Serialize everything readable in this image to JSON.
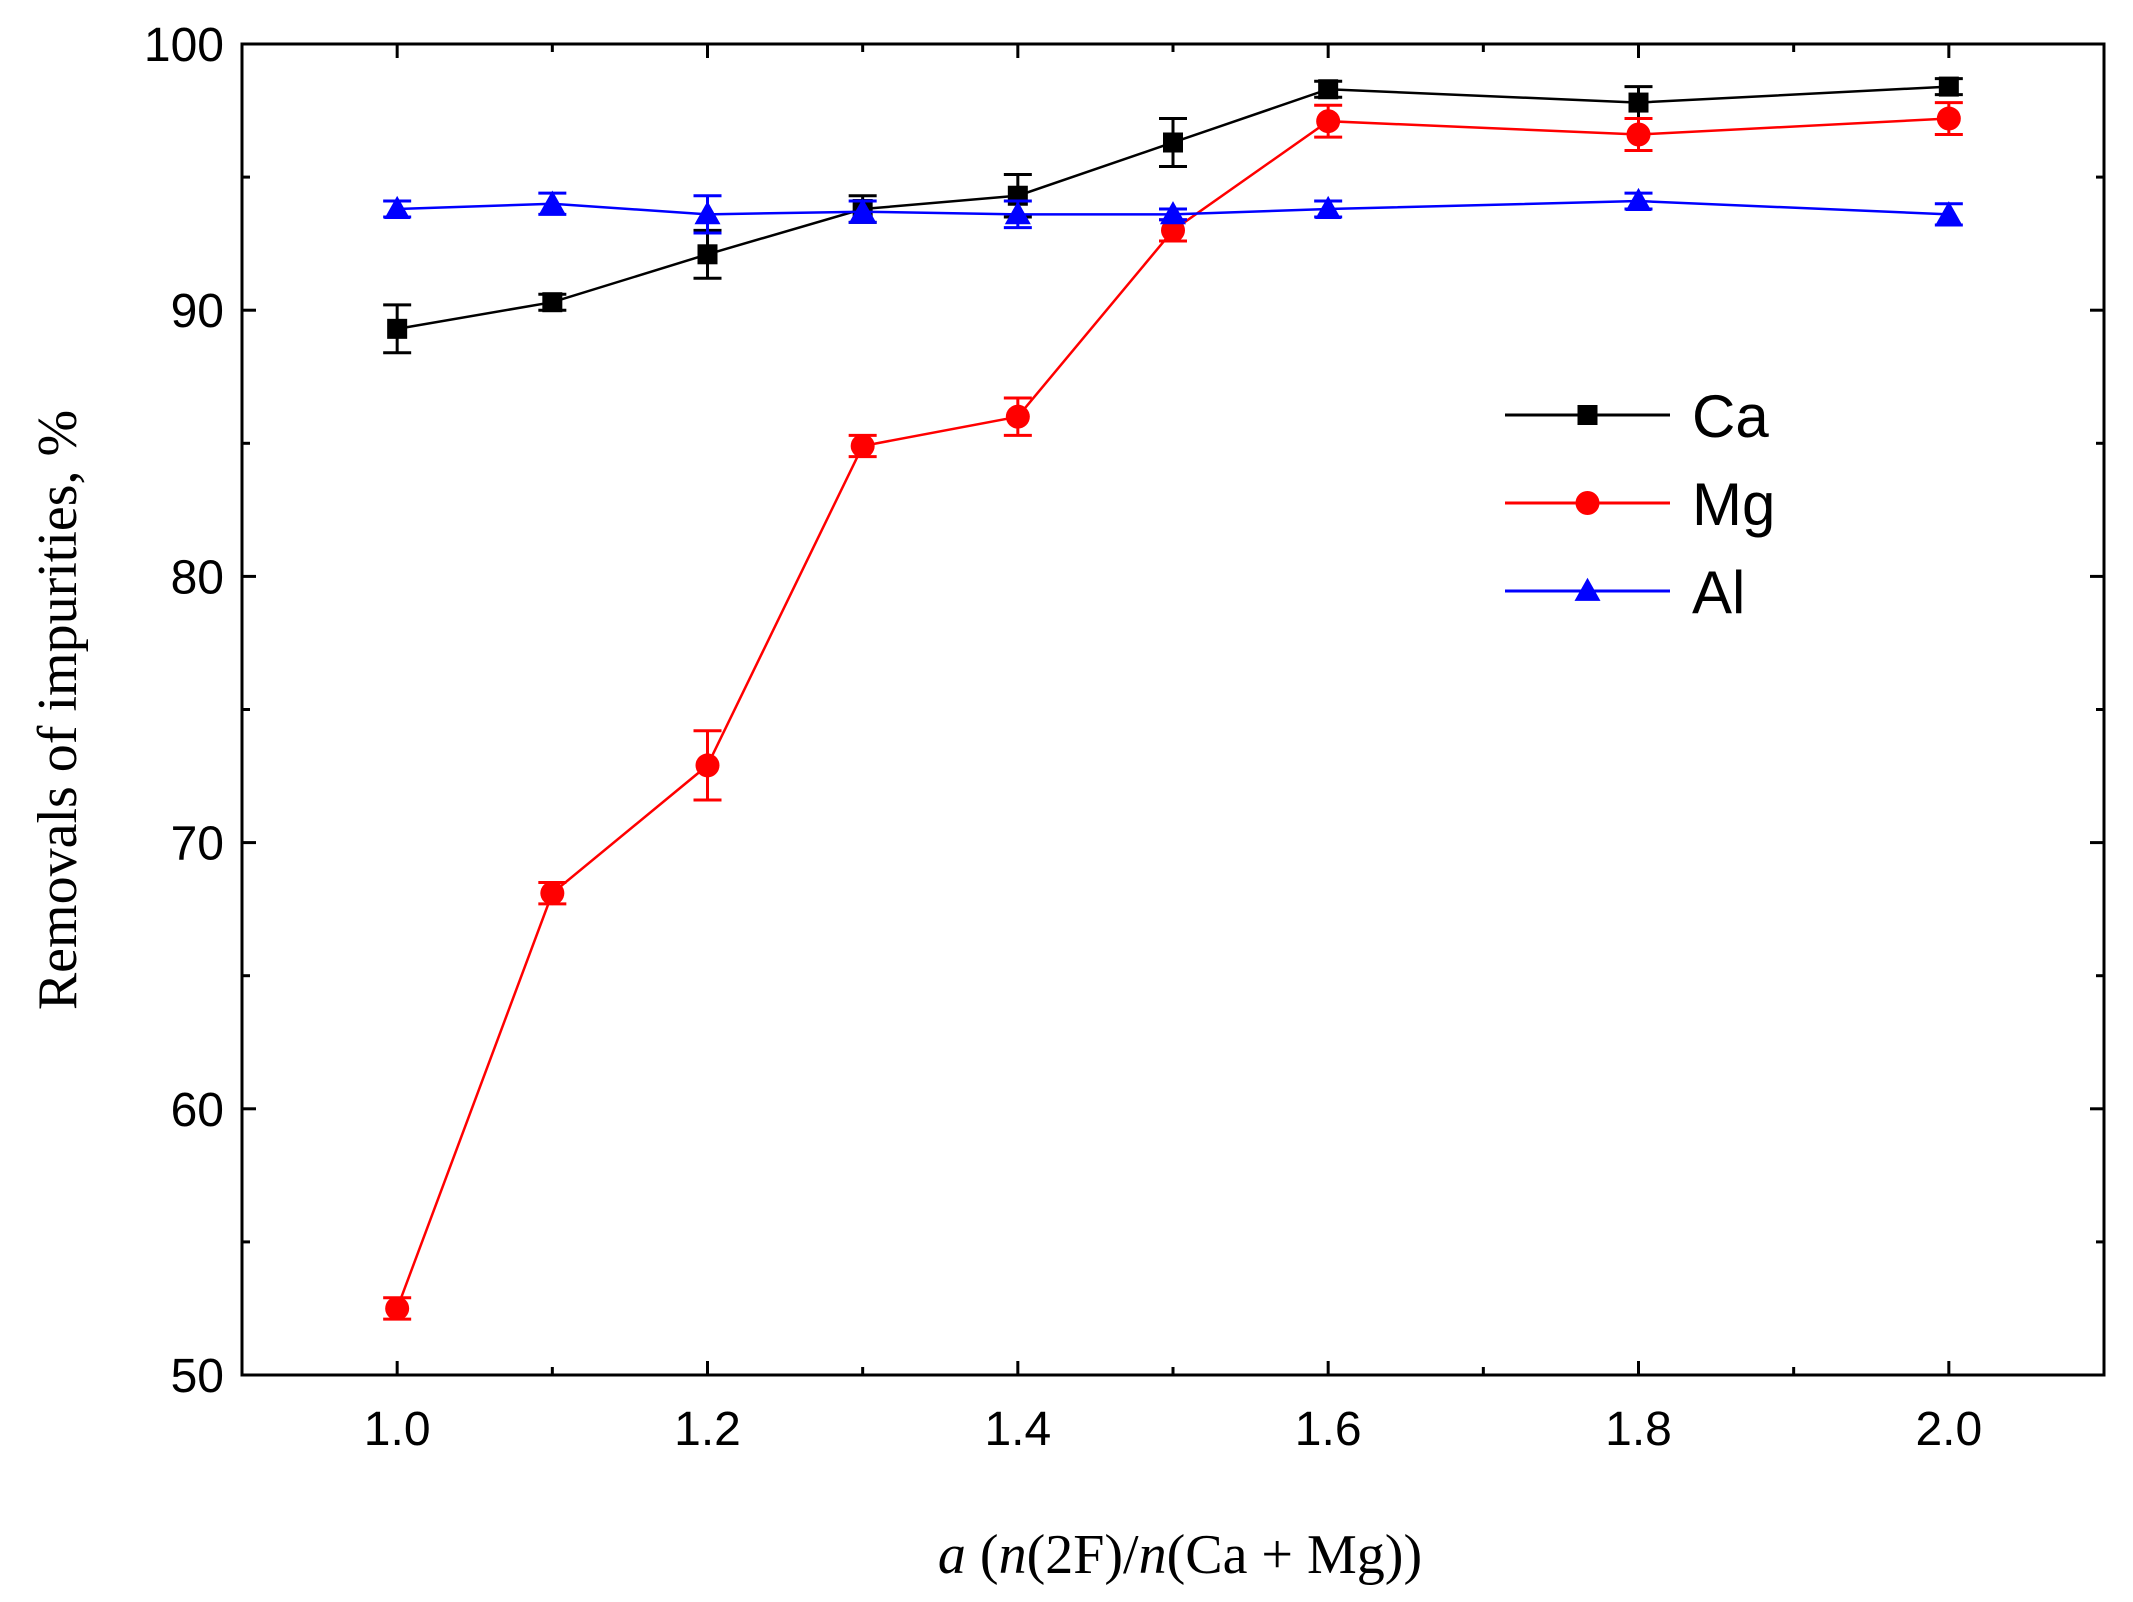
{
  "chart_data": {
    "type": "line",
    "title": "",
    "xlabel": {
      "var": "a",
      "open": " (",
      "n1": "n",
      "mid": "(2F)/",
      "n2": "n",
      "close": "(Ca + Mg))"
    },
    "ylabel": "Removals of impurities, %",
    "xlim": [
      0.9,
      2.1
    ],
    "ylim": [
      50,
      100
    ],
    "xticks": [
      1.0,
      1.2,
      1.4,
      1.6,
      1.8,
      2.0
    ],
    "xtick_labels": [
      "1.0",
      "1.2",
      "1.4",
      "1.6",
      "1.8",
      "2.0"
    ],
    "xminor": [
      1.1,
      1.3,
      1.5,
      1.7,
      1.9
    ],
    "yticks": [
      50,
      60,
      70,
      80,
      90,
      100
    ],
    "ytick_labels": [
      "50",
      "60",
      "70",
      "80",
      "90",
      "100"
    ],
    "yminor": [
      55,
      65,
      75,
      85,
      95
    ],
    "grid": false,
    "legend_position": "right",
    "x": [
      1.0,
      1.1,
      1.2,
      1.3,
      1.4,
      1.5,
      1.6,
      1.8,
      2.0
    ],
    "series": [
      {
        "name": "Ca",
        "color": "#000000",
        "marker": "square",
        "values": [
          89.3,
          90.3,
          92.1,
          93.8,
          94.3,
          96.3,
          98.3,
          97.8,
          98.4
        ],
        "errors": [
          0.9,
          0.3,
          0.9,
          0.5,
          0.8,
          0.9,
          0.3,
          0.6,
          0.3
        ]
      },
      {
        "name": "Mg",
        "color": "#ff0000",
        "marker": "circle",
        "values": [
          52.5,
          68.1,
          72.9,
          84.9,
          86.0,
          93.0,
          97.1,
          96.6,
          97.2
        ],
        "errors": [
          0.4,
          0.4,
          1.3,
          0.4,
          0.7,
          0.4,
          0.6,
          0.6,
          0.6
        ]
      },
      {
        "name": "Al",
        "color": "#0000ff",
        "marker": "triangle",
        "values": [
          93.8,
          94.0,
          93.6,
          93.7,
          93.6,
          93.6,
          93.8,
          94.1,
          93.6
        ],
        "errors": [
          0.3,
          0.4,
          0.7,
          0.4,
          0.5,
          0.2,
          0.3,
          0.3,
          0.4
        ]
      }
    ]
  }
}
